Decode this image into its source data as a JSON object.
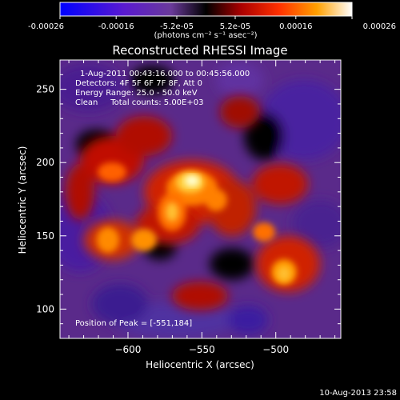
{
  "colorbar": {
    "tick_labels": [
      "-0.00026",
      "-0.00016",
      "-5.2e-05",
      "5.2e-05",
      "0.00016",
      "0.00026"
    ],
    "tick_values": [
      -0.00026,
      -0.00016,
      -5.2e-05,
      5.2e-05,
      0.00016,
      0.00026
    ],
    "range": [
      -0.00026,
      0.00026
    ],
    "unit_label": "(photons cm⁻² s⁻¹ asec⁻²)"
  },
  "chart_data": {
    "type": "heatmap",
    "title": "Reconstructed RHESSI Image",
    "xlabel": "Heliocentric X (arcsec)",
    "ylabel": "Heliocentric Y (arcsec)",
    "xlim": [
      -646,
      -456
    ],
    "ylim": [
      80,
      270
    ],
    "x_ticks": [
      -600,
      -550,
      -500
    ],
    "y_ticks": [
      100,
      150,
      200,
      250
    ],
    "x_tick_labels": [
      "−600",
      "−550",
      "−500"
    ],
    "y_tick_labels": [
      "100",
      "150",
      "200",
      "250"
    ],
    "annotations": [
      "1-Aug-2011 00:43:16.000 to 00:45:56.000",
      "Detectors: 4F 5F 6F 7F 8F, Att 0",
      "Energy Range: 25.0 - 50.0 keV",
      "Clean     Total counts: 5.00E+03"
    ],
    "peak_label": "Position of Peak = [-551,184]",
    "peak": [
      -551,
      184
    ],
    "colormap": [
      "#1010ff",
      "#5a10c8",
      "#6b3aa0",
      "#000000",
      "#8a0000",
      "#e01000",
      "#ff6a00",
      "#ffc000",
      "#ffffd0"
    ]
  },
  "footer": {
    "timestamp": "10-Aug-2013 23:58"
  }
}
